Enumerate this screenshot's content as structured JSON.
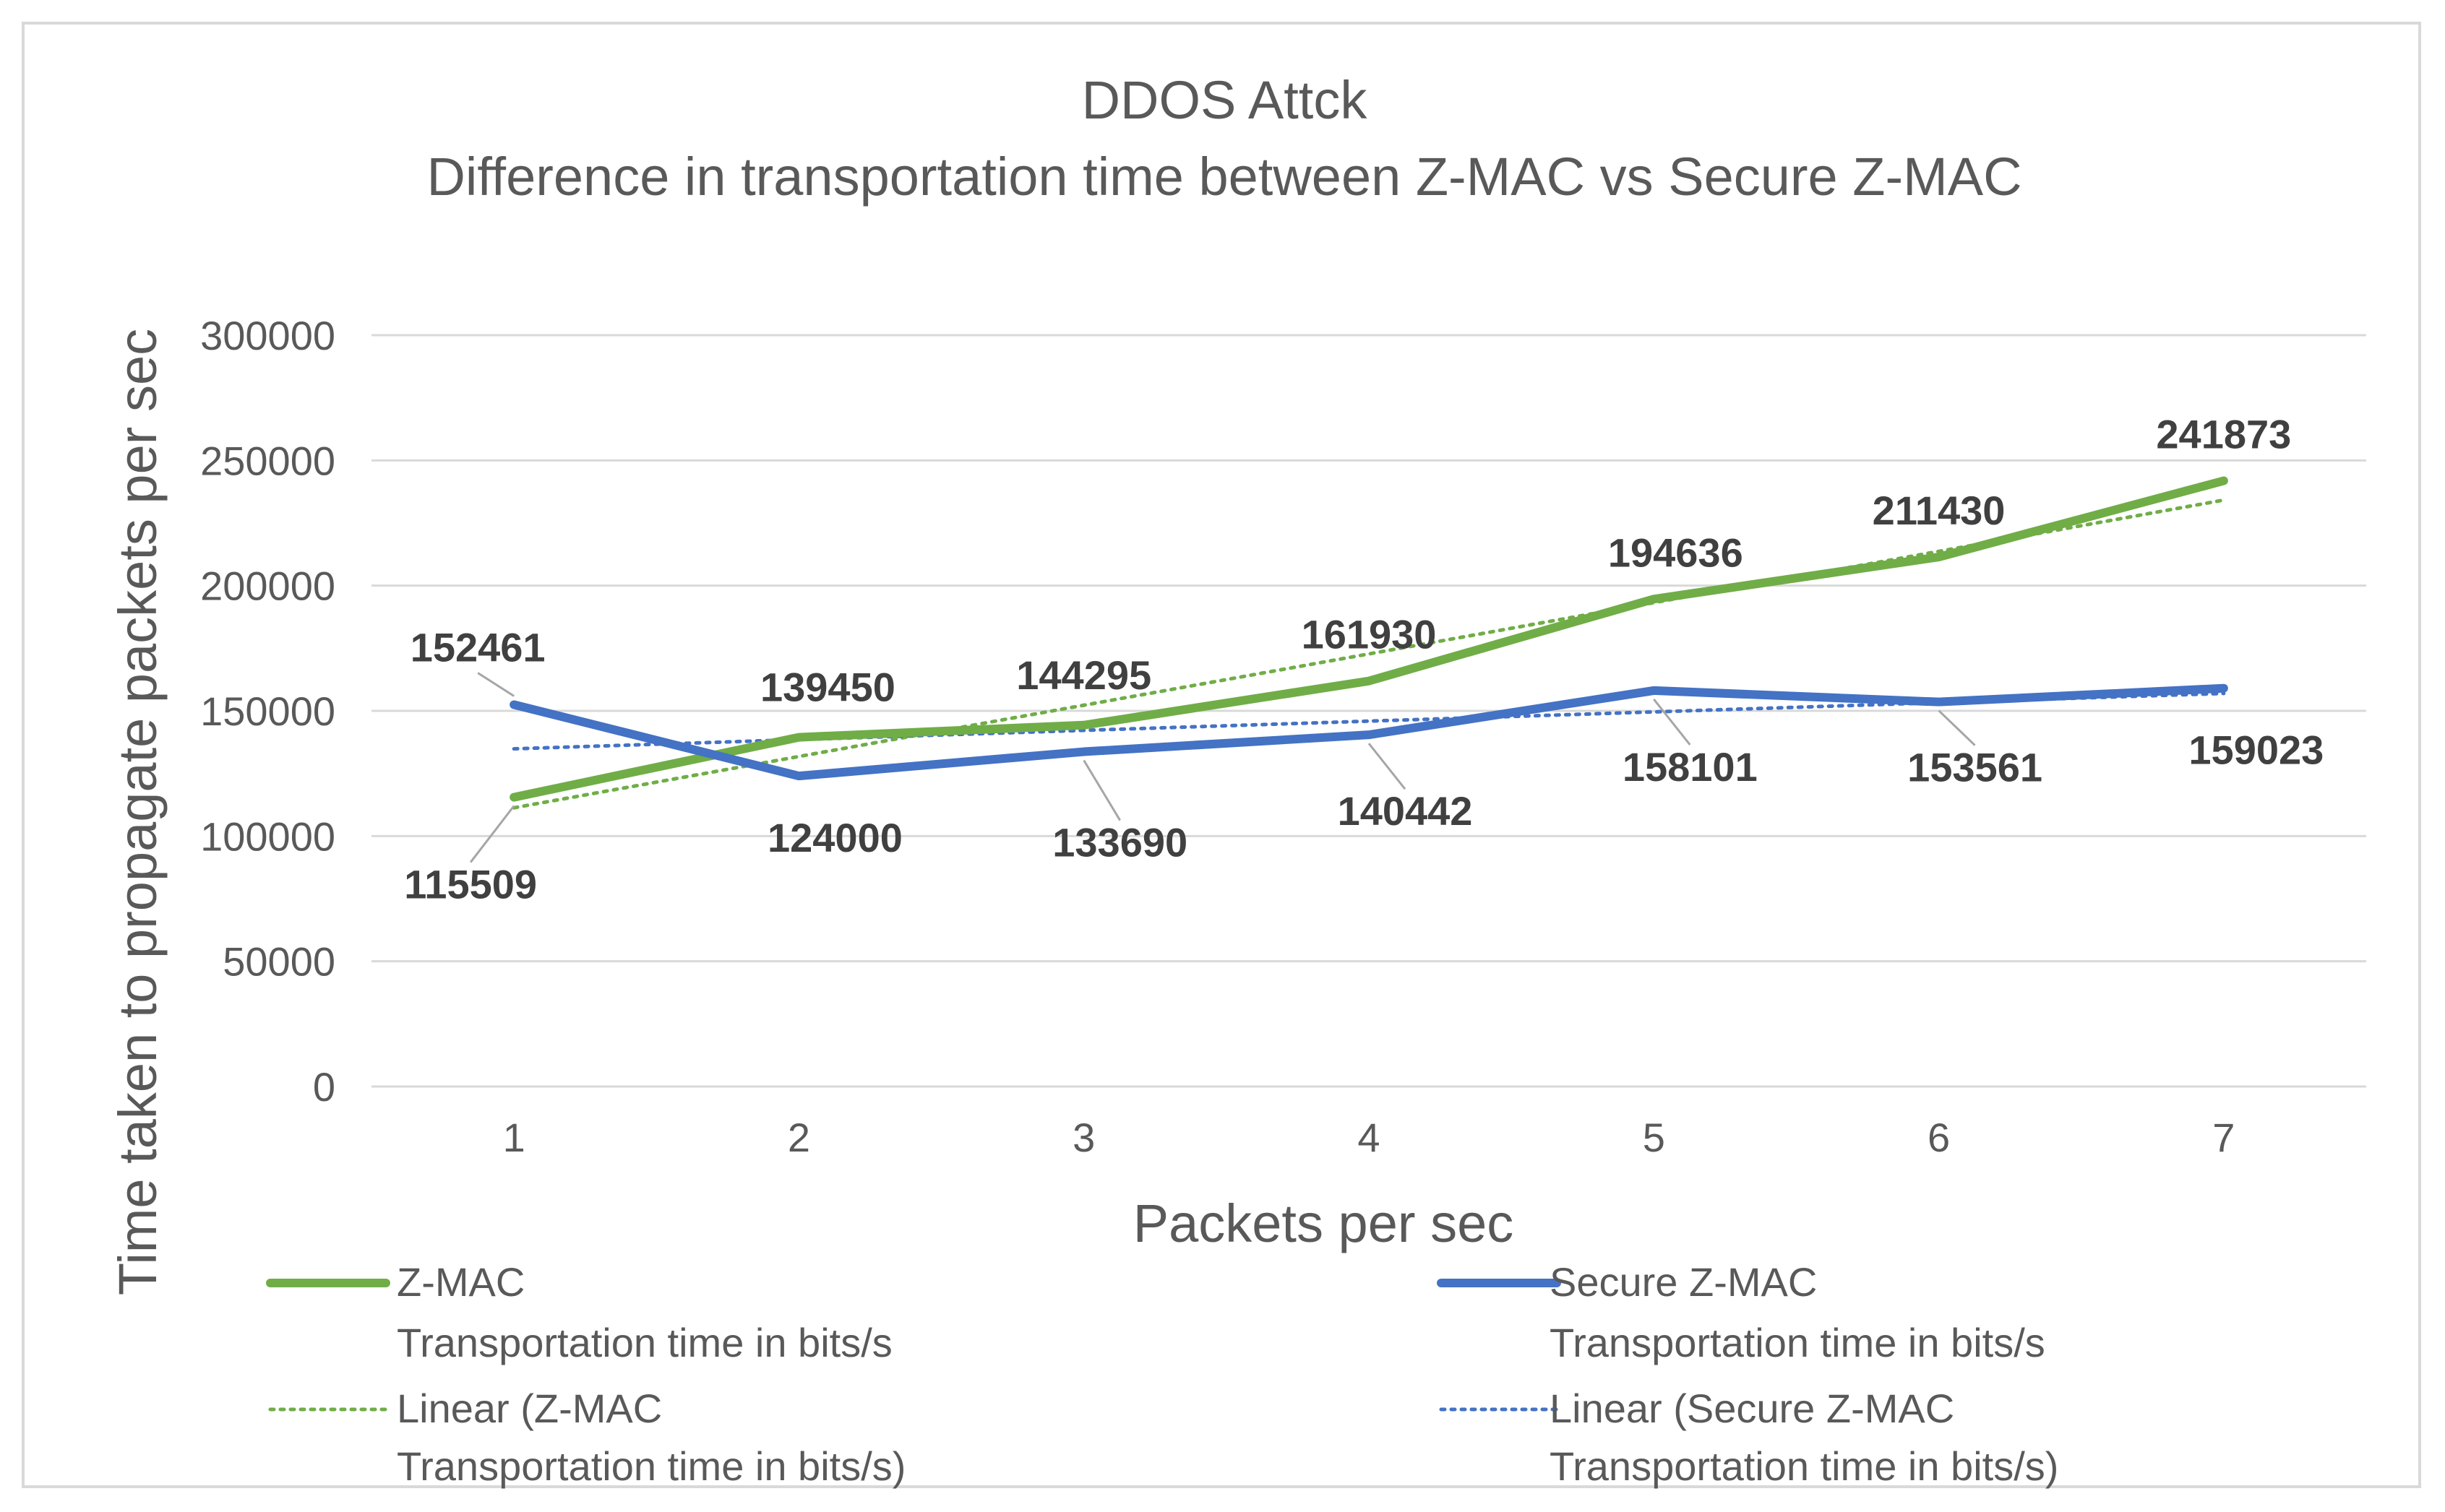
{
  "chart_data": {
    "type": "line",
    "title": "DDOS Attck",
    "subtitle": "Difference in transportation time between Z-MAC vs Secure Z-MAC",
    "xlabel": "Packets per sec",
    "ylabel": "Time taken to propagate packets per sec",
    "categories": [
      "1",
      "2",
      "3",
      "4",
      "5",
      "6",
      "7"
    ],
    "ylim": [
      0,
      300000
    ],
    "yticks": [
      "0",
      "50000",
      "100000",
      "150000",
      "200000",
      "250000",
      "300000"
    ],
    "grid": true,
    "legend_position": "bottom",
    "series": [
      {
        "name": "Z-MAC",
        "name_line2": "Transportation time in bits/s",
        "color": "#70ad47",
        "values": [
          115509,
          139450,
          144295,
          161930,
          194636,
          211430,
          241873
        ],
        "labels": [
          "115509",
          "139450",
          "144295",
          "161930",
          "194636",
          "211430",
          "241873"
        ]
      },
      {
        "name": "Secure Z-MAC",
        "name_line2": "Transportation time  in bits/s",
        "color": "#4472c4",
        "values": [
          152461,
          124000,
          133690,
          140442,
          158101,
          153561,
          159023
        ],
        "labels": [
          "152461",
          "124000",
          "133690",
          "140442",
          "158101",
          "153561",
          "159023"
        ]
      }
    ],
    "trendlines": [
      {
        "name": "Linear (Z-MAC",
        "name_line2": "Transportation time in bits/s)",
        "color": "#70ad47",
        "type": "linear"
      },
      {
        "name": "Linear (Secure Z-MAC",
        "name_line2": "Transportation time  in bits/s)",
        "color": "#4472c4",
        "type": "linear"
      }
    ]
  }
}
